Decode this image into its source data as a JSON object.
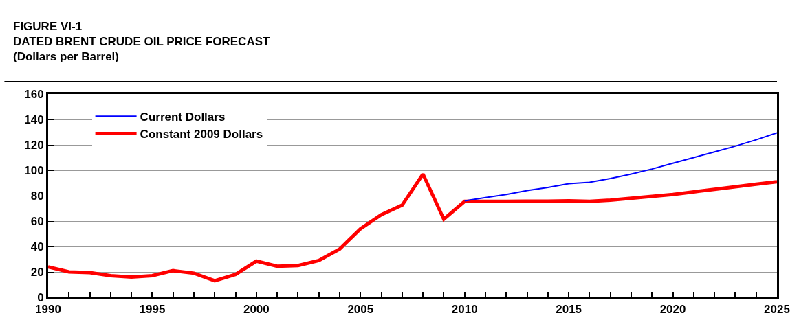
{
  "chart_data": {
    "type": "line",
    "title": "FIGURE VI-1\nDATED BRENT CRUDE OIL PRICE FORECAST",
    "subtitle": "(Dollars per Barrel)",
    "x": [
      1990,
      1991,
      1992,
      1993,
      1994,
      1995,
      1996,
      1997,
      1998,
      1999,
      2000,
      2001,
      2002,
      2003,
      2004,
      2005,
      2006,
      2007,
      2008,
      2009,
      2010,
      2011,
      2012,
      2013,
      2014,
      2015,
      2016,
      2017,
      2018,
      2019,
      2020,
      2021,
      2022,
      2023,
      2024,
      2025
    ],
    "series": [
      {
        "name": "Current Dollars",
        "color": "#0000ff",
        "x": [
          2010,
          2011,
          2012,
          2013,
          2014,
          2015,
          2016,
          2017,
          2018,
          2019,
          2020,
          2021,
          2022,
          2023,
          2024,
          2025
        ],
        "values": [
          76,
          78.5,
          81,
          84,
          86.5,
          89.5,
          90.5,
          93.5,
          97,
          101,
          105.5,
          110,
          114.5,
          119,
          124,
          129.5
        ]
      },
      {
        "name": "Constant 2009 Dollars",
        "color": "#ff0000",
        "values": [
          24,
          20,
          19.5,
          17,
          16,
          17,
          21,
          19,
          13,
          18,
          28.5,
          24.5,
          25,
          29,
          38,
          54,
          65,
          72.5,
          97,
          61.5,
          75.5,
          75.5,
          75.5,
          75.7,
          75.7,
          76,
          75.5,
          76.5,
          78,
          79.5,
          81,
          83,
          85,
          87,
          89,
          91
        ]
      }
    ],
    "xlim": [
      1990,
      2025
    ],
    "xticks": [
      1990,
      {
        "value": 1991,
        "label": null
      },
      {
        "value": 1992,
        "label": null
      },
      {
        "value": 1993,
        "label": null
      },
      {
        "value": 1994,
        "label": null
      },
      1995,
      {
        "value": 1996,
        "label": null
      },
      {
        "value": 1997,
        "label": null
      },
      {
        "value": 1998,
        "label": null
      },
      {
        "value": 1999,
        "label": null
      },
      2000,
      {
        "value": 2001,
        "label": null
      },
      {
        "value": 2002,
        "label": null
      },
      {
        "value": 2003,
        "label": null
      },
      {
        "value": 2004,
        "label": null
      },
      2005,
      {
        "value": 2006,
        "label": null
      },
      {
        "value": 2007,
        "label": null
      },
      {
        "value": 2008,
        "label": null
      },
      {
        "value": 2009,
        "label": null
      },
      2010,
      {
        "value": 2011,
        "label": null
      },
      {
        "value": 2012,
        "label": null
      },
      {
        "value": 2013,
        "label": null
      },
      {
        "value": 2014,
        "label": null
      },
      2015,
      {
        "value": 2016,
        "label": null
      },
      {
        "value": 2017,
        "label": null
      },
      {
        "value": 2018,
        "label": null
      },
      {
        "value": 2019,
        "label": null
      },
      2020,
      {
        "value": 2021,
        "label": null
      },
      {
        "value": 2022,
        "label": null
      },
      {
        "value": 2023,
        "label": null
      },
      {
        "value": 2024,
        "label": null
      },
      2025
    ],
    "ylim": [
      0,
      160
    ],
    "yticks": [
      0,
      20,
      40,
      60,
      80,
      100,
      120,
      140,
      160
    ],
    "grid": "y",
    "legend": "top left",
    "marker": "none",
    "line_style": "solid"
  }
}
